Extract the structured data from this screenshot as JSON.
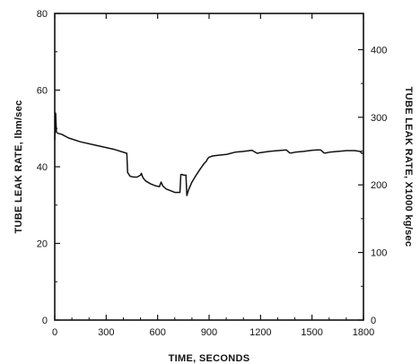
{
  "chart_data": {
    "type": "line",
    "title": "",
    "xlabel": "TIME,  SECONDS",
    "ylabel": "TUBE LEAK RATE,  lbm/sec",
    "ylabel_right": "TUBE LEAK RATE,  X1000  kg/sec",
    "xlim": [
      0,
      1800
    ],
    "ylim": [
      0,
      80
    ],
    "ylim_right": [
      0,
      453.6
    ],
    "xticks": [
      "0",
      "300",
      "600",
      "900",
      "1200",
      "1500",
      "1800"
    ],
    "yticks": [
      "0",
      "20",
      "40",
      "60",
      "80"
    ],
    "yticks_right": [
      "0",
      "100",
      "200",
      "300",
      "400"
    ],
    "grid": false,
    "legend": "none",
    "series": [
      {
        "x": [
          0,
          5,
          10,
          20,
          40,
          80,
          150,
          250,
          350,
          420,
          425,
          440,
          460,
          480,
          500,
          505,
          512,
          520,
          530,
          560,
          590,
          610,
          620,
          630,
          650,
          700,
          730,
          735,
          745,
          750,
          755,
          760,
          765,
          770,
          780,
          790,
          800,
          820,
          850,
          870,
          885,
          890,
          900,
          920,
          950,
          1000,
          1050,
          1100,
          1150,
          1180,
          1200,
          1250,
          1300,
          1350,
          1370,
          1380,
          1400,
          1450,
          1500,
          1530,
          1550,
          1570,
          1580,
          1600,
          1650,
          1700,
          1750,
          1780,
          1790,
          1800
        ],
        "values": [
          47,
          54,
          49,
          48.7,
          48.5,
          47.5,
          46.5,
          45.5,
          44.5,
          43.5,
          38.5,
          37.5,
          37.3,
          37.3,
          37.8,
          38.3,
          37.4,
          36.8,
          36.3,
          35.5,
          35.0,
          34.8,
          36.0,
          35.0,
          34.2,
          33.3,
          33.3,
          38.0,
          38.0,
          37.8,
          37.8,
          37.8,
          37.8,
          32.5,
          34.0,
          35.0,
          36.0,
          37.5,
          39.5,
          40.8,
          41.5,
          42.0,
          42.5,
          42.8,
          43.0,
          43.2,
          43.8,
          44.0,
          44.3,
          43.5,
          43.7,
          44.0,
          44.2,
          44.4,
          43.6,
          43.6,
          43.8,
          44.0,
          44.3,
          44.4,
          44.4,
          43.6,
          43.6,
          43.8,
          44.0,
          44.2,
          44.2,
          44.0,
          43.5,
          43.6
        ]
      }
    ]
  }
}
